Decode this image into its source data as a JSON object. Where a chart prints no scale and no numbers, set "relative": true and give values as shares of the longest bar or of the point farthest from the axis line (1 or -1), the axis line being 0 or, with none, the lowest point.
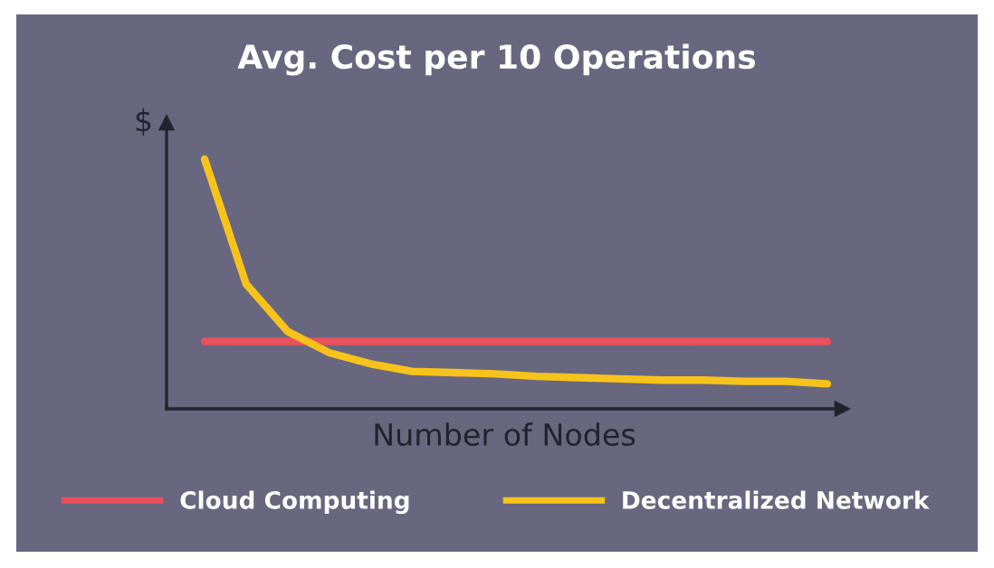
{
  "chart_data": {
    "type": "line",
    "title": "Avg. Cost per 10 Operations",
    "xlabel": "Number of Nodes",
    "ylabel": "$",
    "relative": true,
    "legend": "bottom",
    "grid": false,
    "marker": "none",
    "line_style": "solid",
    "categories": [
      null,
      null,
      null,
      null,
      null,
      null,
      null,
      null,
      null,
      null,
      null,
      null,
      null,
      null,
      null,
      null
    ],
    "series": [
      {
        "name": "Cloud Computing",
        "color": "#e8525c",
        "values": [
          0.27,
          0.27,
          0.27,
          0.27,
          0.27,
          0.27,
          0.27,
          0.27,
          0.27,
          0.27,
          0.27,
          0.27,
          0.27,
          0.27,
          0.27,
          0.27
        ]
      },
      {
        "name": "Decentralized Network",
        "color": "#f7c31a",
        "values": [
          1.0,
          0.5,
          0.31,
          0.225,
          0.18,
          0.15,
          0.145,
          0.14,
          0.13,
          0.125,
          0.12,
          0.115,
          0.115,
          0.11,
          0.11,
          0.1
        ]
      }
    ]
  }
}
